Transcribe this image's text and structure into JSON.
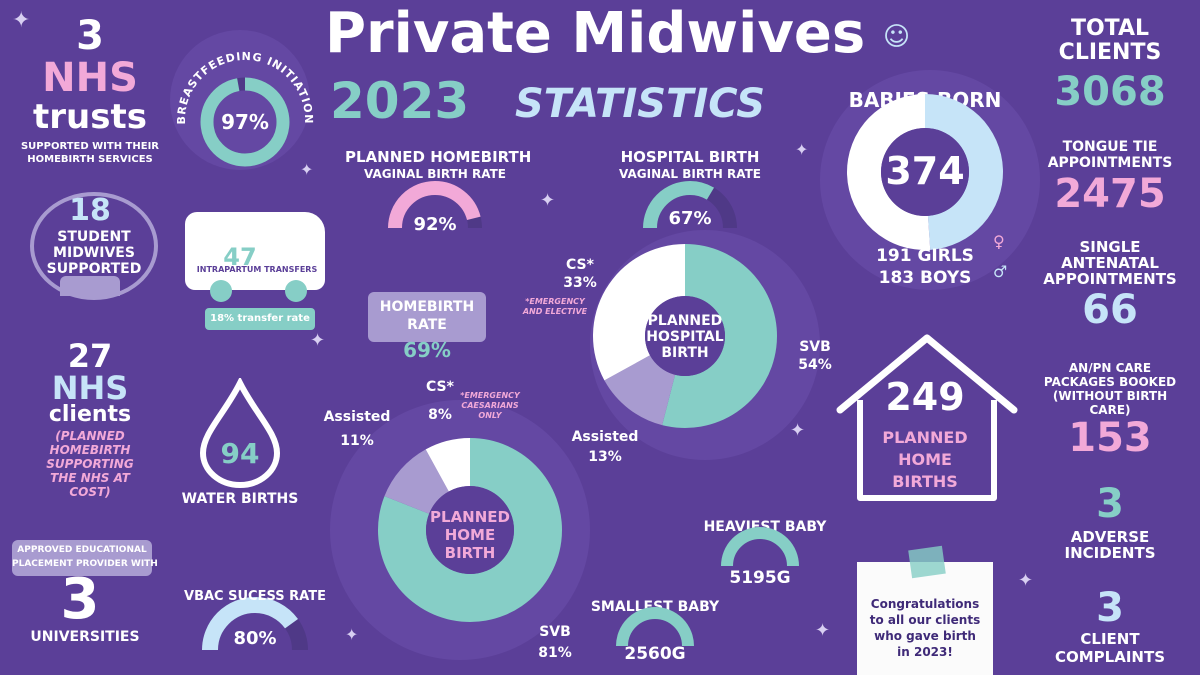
{
  "colors": {
    "background": "#5b3f98",
    "teal": "#86cec6",
    "pink": "#f2a9d8",
    "light_blue": "#c6e4f8",
    "lavender": "#a89bd0",
    "white": "#ffffff"
  },
  "title": {
    "line1": "Private Midwives",
    "year": "2023",
    "line2": "STATISTICS"
  },
  "nhs_trusts": {
    "number": "3",
    "label1": "NHS",
    "label2": "trusts",
    "caption1": "SUPPORTED WITH THEIR",
    "caption2": "HOMEBIRTH SERVICES"
  },
  "students": {
    "number": "18",
    "l1": "STUDENT",
    "l2": "MIDWIVES",
    "l3": "SUPPORTED"
  },
  "nhs_clients": {
    "number": "27",
    "l1": "NHS",
    "l2": "clients",
    "c1": "(PLANNED",
    "c2": "HOMEBIRTH",
    "c3": "SUPPORTING",
    "c4": "THE NHS AT",
    "c5": "COST)"
  },
  "universities": {
    "banner1": "APPROVED EDUCATIONAL",
    "banner2": "PLACEMENT PROVIDER WITH",
    "number": "3",
    "label": "UNIVERSITIES"
  },
  "breastfeeding": {
    "label": "BREASTFEEDING INITIATION",
    "value": "97%",
    "percent": 97
  },
  "transfers": {
    "number": "47",
    "label": "INTRAPARTUM TRANSFERS",
    "rate": "18% transfer rate"
  },
  "water_births": {
    "number": "94",
    "label": "WATER BIRTHS"
  },
  "vbac": {
    "label": "VBAC SUCESS RATE",
    "value": "80%",
    "percent": 80
  },
  "planned_homebirth_rate": {
    "l1": "PLANNED HOMEBIRTH",
    "l2": "VAGINAL BIRTH RATE",
    "value": "92%",
    "percent": 92
  },
  "homebirth_rate": {
    "l1": "HOMEBIRTH",
    "l2": "RATE",
    "value": "69%"
  },
  "hospital_birth_rate": {
    "l1": "HOSPITAL BIRTH",
    "l2": "VAGINAL BIRTH RATE",
    "value": "67%",
    "percent": 67
  },
  "hospital_donut": {
    "center1": "PLANNED",
    "center2": "HOSPITAL",
    "center3": "BIRTH",
    "cs_label": "CS*",
    "cs_value": "33%",
    "cs_note1": "*EMERGENCY",
    "cs_note2": "AND ELECTIVE",
    "svb_label": "SVB",
    "svb_value": "54%",
    "assisted_label": "Assisted",
    "assisted_value": "13%",
    "segments": [
      {
        "name": "SVB",
        "value": 54
      },
      {
        "name": "Assisted",
        "value": 13
      },
      {
        "name": "CS",
        "value": 33
      }
    ]
  },
  "home_donut": {
    "center1": "PLANNED",
    "center2": "HOME",
    "center3": "BIRTH",
    "cs_label": "CS*",
    "cs_value": "8%",
    "cs_note1": "*EMERGENCY",
    "cs_note2": "CAESARIANS",
    "cs_note3": "ONLY",
    "assisted_label": "Assisted",
    "assisted_value": "11%",
    "svb_label": "SVB",
    "svb_value": "81%",
    "segments": [
      {
        "name": "SVB",
        "value": 81
      },
      {
        "name": "Assisted",
        "value": 11
      },
      {
        "name": "CS",
        "value": 8
      }
    ]
  },
  "babies": {
    "label": "BABIES BORN",
    "number": "374",
    "girls": "191 GIRLS",
    "boys": "183 BOYS",
    "girls_value": 191,
    "boys_value": 183
  },
  "home_births": {
    "number": "249",
    "l1": "PLANNED",
    "l2": "HOME",
    "l3": "BIRTHS"
  },
  "heaviest": {
    "label": "HEAVIEST BABY",
    "value": "5195G"
  },
  "smallest": {
    "label": "SMALLEST BABY",
    "value": "2560G"
  },
  "note": {
    "l1": "Congratulations",
    "l2": "to all our clients",
    "l3": "who gave birth",
    "l4": "in 2023!"
  },
  "right": {
    "total_label1": "TOTAL",
    "total_label2": "CLIENTS",
    "total_value": "3068",
    "tongue1": "TONGUE TIE",
    "tongue2": "APPOINTMENTS",
    "tongue_value": "2475",
    "antenatal1": "SINGLE",
    "antenatal2": "ANTENATAL",
    "antenatal3": "APPOINTMENTS",
    "antenatal_value": "66",
    "anpn1": "AN/PN CARE",
    "anpn2": "PACKAGES BOOKED",
    "anpn3": "(WITHOUT BIRTH",
    "anpn4": "CARE)",
    "anpn_value": "153",
    "adverse_value": "3",
    "adverse1": "ADVERSE",
    "adverse2": "INCIDENTS",
    "complaints_value": "3",
    "complaints1": "CLIENT",
    "complaints2": "COMPLAINTS"
  }
}
